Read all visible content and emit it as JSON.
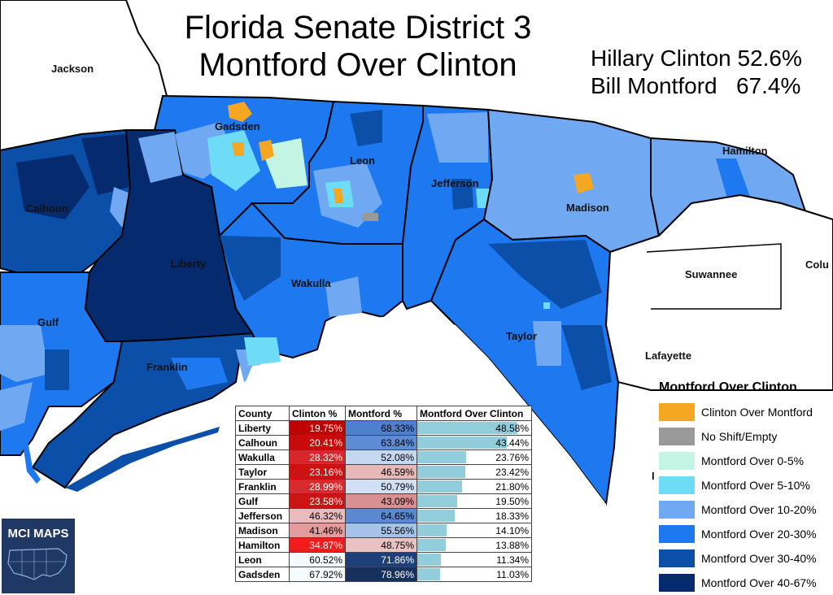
{
  "title_line1": "Florida Senate District 3",
  "title_line2": "Montford Over Clinton",
  "stats": [
    {
      "name": "Hillary Clinton",
      "value": "52.6%"
    },
    {
      "name": "Bill Montford",
      "value": "67.4%"
    }
  ],
  "counties": {
    "jackson": "Jackson",
    "gadsden": "Gadsden",
    "leon": "Leon",
    "jefferson": "Jefferson",
    "madison": "Madison",
    "hamilton": "Hamilton",
    "calhoun": "Calhoun",
    "liberty": "Liberty",
    "wakulla": "Wakulla",
    "gulf": "Gulf",
    "franklin": "Franklin",
    "taylor": "Taylor",
    "suwannee": "Suwannee",
    "lafayette": "Lafayette",
    "columbia_partial": "Colu",
    "dixie_partial": "I"
  },
  "legend": {
    "title": "Montford Over Clinton",
    "items": [
      {
        "label": "Clinton Over Montford",
        "color": "#f5a623"
      },
      {
        "label": "No Shift/Empty",
        "color": "#999999"
      },
      {
        "label": "Montford Over 0-5%",
        "color": "#c4f5e4"
      },
      {
        "label": "Montford Over 5-10%",
        "color": "#6fdcf7"
      },
      {
        "label": "Montford Over 10-20%",
        "color": "#70a9f2"
      },
      {
        "label": "Montford Over 20-30%",
        "color": "#1e78f0"
      },
      {
        "label": "Montford Over 30-40%",
        "color": "#0b4fa8"
      },
      {
        "label": "Montford Over 40-67%",
        "color": "#062a6e"
      }
    ]
  },
  "table": {
    "headers": [
      "County",
      "Clinton %",
      "Montford %",
      "Montford Over Clinton"
    ],
    "rows": [
      {
        "county": "Liberty",
        "clinton": "19.75%",
        "montford": "68.33%",
        "diff": "48.58%",
        "cc": "#c00000",
        "mc": "#4f7fcf",
        "ct": "#fff",
        "mt": "#000"
      },
      {
        "county": "Calhoun",
        "clinton": "20.41%",
        "montford": "63.84%",
        "diff": "43.44%",
        "cc": "#c80a0a",
        "mc": "#5d8bd4",
        "ct": "#fff",
        "mt": "#000"
      },
      {
        "county": "Wakulla",
        "clinton": "28.32%",
        "montford": "52.08%",
        "diff": "23.76%",
        "cc": "#d8262b",
        "mc": "#c5d8f2",
        "ct": "#fff",
        "mt": "#000"
      },
      {
        "county": "Taylor",
        "clinton": "23.16%",
        "montford": "46.59%",
        "diff": "23.42%",
        "cc": "#cc1212",
        "mc": "#e6b8b8",
        "ct": "#fff",
        "mt": "#000"
      },
      {
        "county": "Franklin",
        "clinton": "28.99%",
        "montford": "50.79%",
        "diff": "21.80%",
        "cc": "#d92b2f",
        "mc": "#d2e0f5",
        "ct": "#fff",
        "mt": "#000"
      },
      {
        "county": "Gulf",
        "clinton": "23.58%",
        "montford": "43.09%",
        "diff": "19.50%",
        "cc": "#cd1414",
        "mc": "#d99090",
        "ct": "#fff",
        "mt": "#000"
      },
      {
        "county": "Jefferson",
        "clinton": "46.32%",
        "montford": "64.65%",
        "diff": "18.33%",
        "cc": "#e8bcbc",
        "mc": "#5a88d3",
        "ct": "#000",
        "mt": "#000"
      },
      {
        "county": "Madison",
        "clinton": "41.46%",
        "montford": "55.56%",
        "diff": "14.10%",
        "cc": "#e39b9b",
        "mc": "#a7c2ea",
        "ct": "#000",
        "mt": "#000"
      },
      {
        "county": "Hamilton",
        "clinton": "34.87%",
        "montford": "48.75%",
        "diff": "13.88%",
        "cc": "#f21c1c",
        "mc": "#e9c3c3",
        "ct": "#fff",
        "mt": "#000"
      },
      {
        "county": "Leon",
        "clinton": "60.52%",
        "montford": "71.86%",
        "diff": "11.34%",
        "cc": "#f5fafc",
        "mc": "#1f3f78",
        "ct": "#000",
        "mt": "#fff"
      },
      {
        "county": "Gadsden",
        "clinton": "67.92%",
        "montford": "78.96%",
        "diff": "11.03%",
        "cc": "#f8fbfd",
        "mc": "#17305f",
        "ct": "#000",
        "mt": "#fff"
      }
    ]
  },
  "logo": {
    "text": "MCI MAPS"
  }
}
